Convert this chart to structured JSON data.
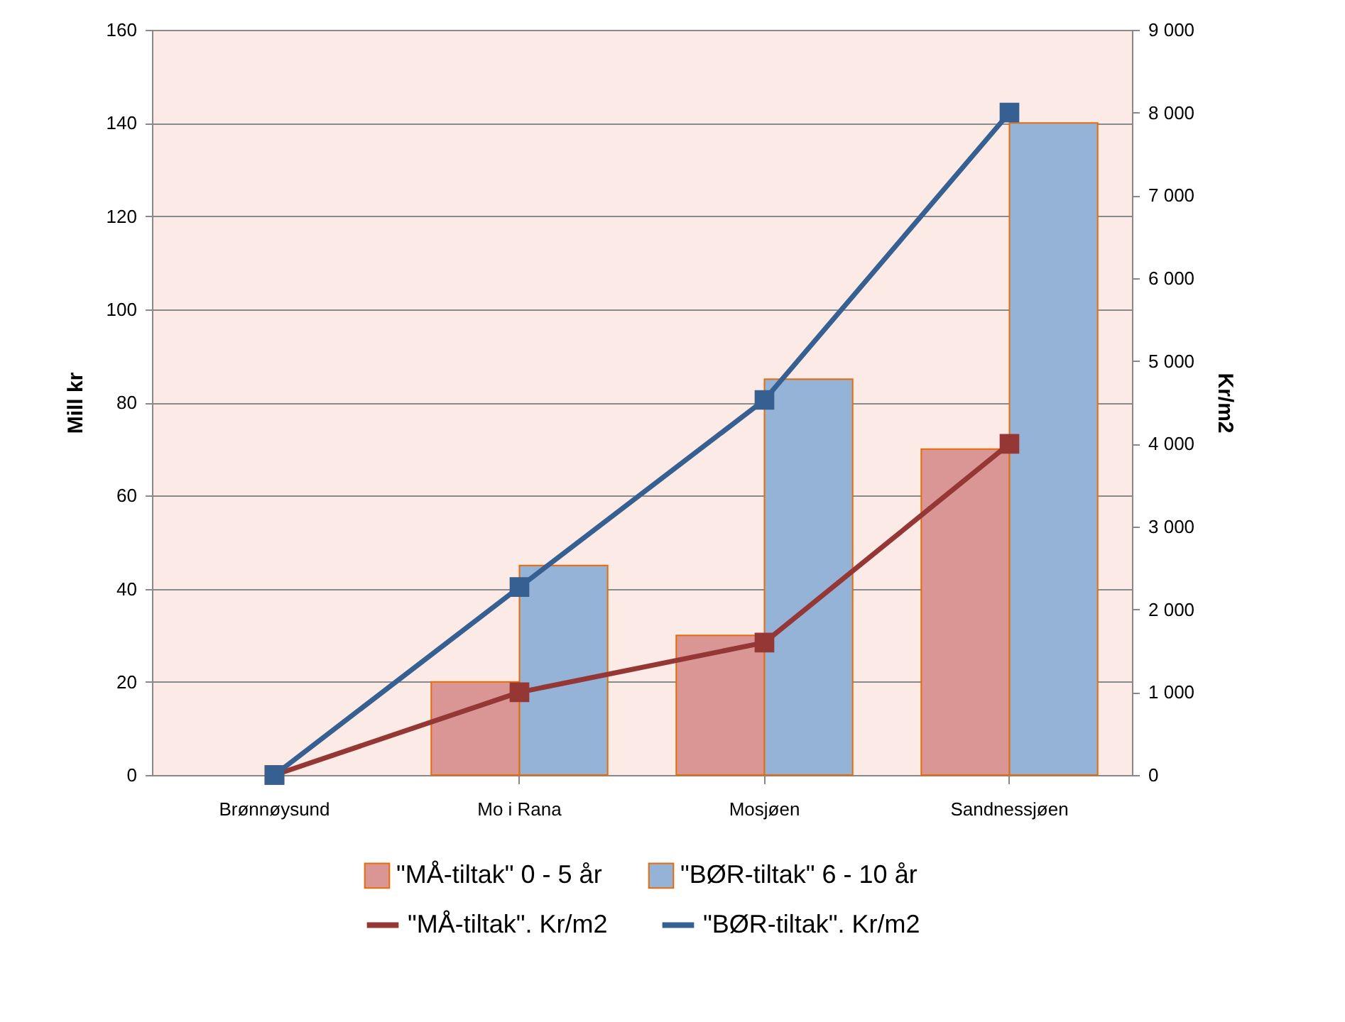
{
  "chart_data": {
    "type": "bar",
    "categories": [
      "Brønnøysund",
      "Mo i Rana",
      "Mosjøen",
      "Sandnessjøen"
    ],
    "series": [
      {
        "name": "\"MÅ-tiltak\" 0 - 5 år",
        "color": "#d99694",
        "values": [
          0,
          20,
          30,
          70
        ]
      },
      {
        "name": "\"BØR-tiltak\" 6 - 10 år",
        "color": "#95b3d7",
        "values": [
          0,
          45,
          85,
          140
        ]
      },
      {
        "name": "\"MÅ-tiltak\". Kr/m2",
        "type": "line",
        "axis": "y2",
        "color": "#953735",
        "values": [
          0,
          1000,
          1600,
          4000
        ]
      },
      {
        "name": "\"BØR-tiltak\". Kr/m2",
        "type": "line",
        "axis": "y2",
        "color": "#376092",
        "values": [
          0,
          2270,
          4530,
          8000
        ]
      }
    ],
    "ylabel": "Mill kr",
    "y2label": "Kr/m2",
    "ylim": [
      0,
      160
    ],
    "yticks": [
      0,
      20,
      40,
      60,
      80,
      100,
      120,
      140,
      160
    ],
    "y2lim": [
      0,
      9000
    ],
    "y2ticks": [
      0,
      {
        "value": 1000,
        "label": "1 000"
      },
      {
        "value": 2000,
        "label": "2 000"
      },
      {
        "value": 3000,
        "label": "3 000"
      },
      {
        "value": 4000,
        "label": "4 000"
      },
      {
        "value": 5000,
        "label": "5 000"
      },
      {
        "value": 6000,
        "label": "6 000"
      },
      {
        "value": 7000,
        "label": "7 000"
      },
      {
        "value": 8000,
        "label": "8 000"
      },
      {
        "value": 9000,
        "label": "9 000"
      }
    ],
    "grid": "y",
    "legend": "bottom",
    "marker": "square"
  }
}
